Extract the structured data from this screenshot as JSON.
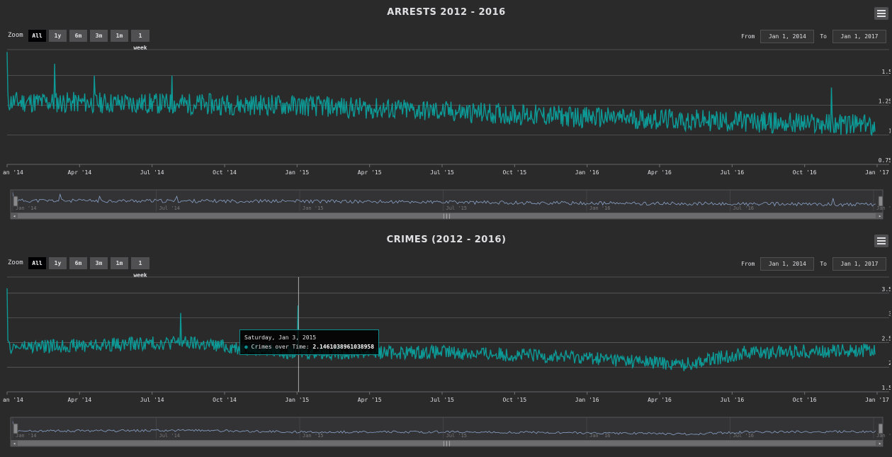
{
  "zoom_label": "Zoom",
  "zoom_buttons": [
    "All",
    "1y",
    "6m",
    "3m",
    "1m",
    "1 week"
  ],
  "range": {
    "from_label": "From",
    "from_value": "Jan 1, 2014",
    "to_label": "To",
    "to_value": "Jan 1, 2017"
  },
  "colors": {
    "series": "#0d9a96",
    "navigator": "#8aa3c8",
    "background": "#2a2a2b",
    "grid": "#707073"
  },
  "chart_data": [
    {
      "type": "line",
      "title": "ARRESTS 2012 - 2016",
      "x_range": [
        "2014-01-01",
        "2017-01-01"
      ],
      "x_ticks": [
        "Jan '14",
        "Apr '14",
        "Jul '14",
        "Oct '14",
        "Jan '15",
        "Apr '15",
        "Jul '15",
        "Oct '15",
        "Jan '16",
        "Apr '16",
        "Jul '16",
        "Oct '16",
        "Jan '17"
      ],
      "navigator_ticks": [
        "Jan '14",
        "Jul '14",
        "Jan '15",
        "Jul '15",
        "Jan '16",
        "Jul '16",
        "Jan '17"
      ],
      "y_ticks": [
        0.75,
        1,
        1.25,
        1.5
      ],
      "ylim": [
        0.75,
        1.75
      ],
      "trend": [
        [
          0,
          1.28
        ],
        [
          0.33,
          1.25
        ],
        [
          0.66,
          1.15
        ],
        [
          1.0,
          1.08
        ]
      ],
      "noise": 0.09,
      "spikes": [
        [
          0.0,
          1.7
        ],
        [
          0.055,
          1.6
        ],
        [
          0.1,
          1.5
        ],
        [
          0.19,
          1.5
        ],
        [
          0.95,
          1.4
        ],
        [
          0.78,
          1.1
        ]
      ],
      "series": [
        {
          "name": "Arrests"
        }
      ]
    },
    {
      "type": "line",
      "title": "CRIMES (2012 - 2016)",
      "x_range": [
        "2014-01-01",
        "2017-01-01"
      ],
      "x_ticks": [
        "Jan '14",
        "Apr '14",
        "Jul '14",
        "Oct '14",
        "Jan '15",
        "Apr '15",
        "Jul '15",
        "Oct '15",
        "Jan '16",
        "Apr '16",
        "Jul '16",
        "Oct '16",
        "Jan '17"
      ],
      "navigator_ticks": [
        "Jan '14",
        "Jul '14",
        "Jan '15",
        "Jul '15",
        "Jan '16",
        "Jul '16",
        "Jan '17"
      ],
      "y_ticks": [
        1.5,
        2,
        2.5,
        3,
        3.5
      ],
      "ylim": [
        1.5,
        3.9
      ],
      "trend": [
        [
          0,
          2.4
        ],
        [
          0.2,
          2.5
        ],
        [
          0.33,
          2.3
        ],
        [
          0.5,
          2.3
        ],
        [
          0.66,
          2.2
        ],
        [
          0.78,
          2.05
        ],
        [
          0.85,
          2.3
        ],
        [
          1.0,
          2.35
        ]
      ],
      "noise": 0.14,
      "spikes": [
        [
          0.0,
          3.6
        ],
        [
          0.2,
          3.1
        ],
        [
          0.335,
          3.25
        ]
      ],
      "series": [
        {
          "name": "Crimes over Time"
        }
      ],
      "tooltip": {
        "date": "Saturday, Jan 3, 2015",
        "series": "Crimes over Time",
        "value": "2.1461038961038958"
      }
    }
  ]
}
